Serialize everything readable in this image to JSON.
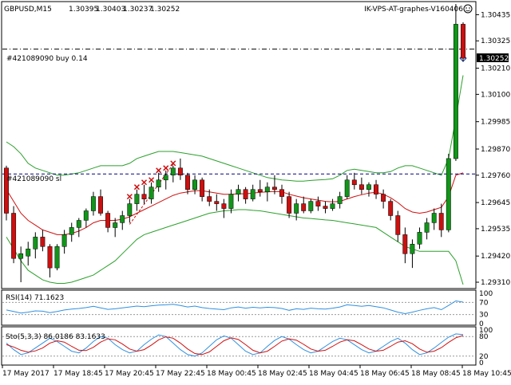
{
  "symbol": "GBPUSD,M15",
  "ohlc": [
    "1.30395",
    "1.30403",
    "1.30237",
    "1.30252"
  ],
  "expert": "IK-VPS-AT-graphes-V160406",
  "expert_icon": "smiley-icon",
  "orders": {
    "buy_label": "#421089090 buy 0.14",
    "sl_label": "#421089090 sl"
  },
  "price_badge": "1.30252",
  "colors": {
    "bull": "#109618",
    "bear": "#cc1010",
    "ma": "#d01010",
    "bands": "#2ca02c",
    "rsi": "#3090e0",
    "stoch_main": "#3090e0",
    "stoch_signal": "#d01010",
    "level": "#000080"
  },
  "main_chart": {
    "price_ticks": [
      "1.30435",
      "1.30325",
      "1.30210",
      "1.30100",
      "1.29985",
      "1.29870",
      "1.29760",
      "1.29645",
      "1.29535",
      "1.29420",
      "1.29310"
    ],
    "ylim": [
      1.2929,
      1.3048
    ],
    "buy_price": 1.3029,
    "sl_price": 1.29765,
    "last_price": 1.30252,
    "candles": [
      [
        1.2979,
        1.298,
        1.2957,
        1.296
      ],
      [
        1.296,
        1.2963,
        1.2939,
        1.2941
      ],
      [
        1.2941,
        1.2946,
        1.2931,
        1.2943
      ],
      [
        1.2942,
        1.2948,
        1.2938,
        1.2945
      ],
      [
        1.2945,
        1.2952,
        1.2941,
        1.295
      ],
      [
        1.295,
        1.2953,
        1.2944,
        1.2946
      ],
      [
        1.2946,
        1.2947,
        1.2933,
        1.2937
      ],
      [
        1.2937,
        1.2947,
        1.2936,
        1.2946
      ],
      [
        1.2946,
        1.2953,
        1.2943,
        1.2951
      ],
      [
        1.2951,
        1.2956,
        1.2948,
        1.2954
      ],
      [
        1.2954,
        1.2958,
        1.295,
        1.2957
      ],
      [
        1.2957,
        1.2962,
        1.2954,
        1.2961
      ],
      [
        1.2961,
        1.2969,
        1.2959,
        1.2967
      ],
      [
        1.2967,
        1.297,
        1.2959,
        1.296
      ],
      [
        1.296,
        1.2961,
        1.2952,
        1.2954
      ],
      [
        1.2954,
        1.2958,
        1.295,
        1.2956
      ],
      [
        1.2956,
        1.2961,
        1.2953,
        1.2959
      ],
      [
        1.2959,
        1.2966,
        1.2956,
        1.2964
      ],
      [
        1.2964,
        1.297,
        1.2961,
        1.2968
      ],
      [
        1.2968,
        1.2972,
        1.2964,
        1.2966
      ],
      [
        1.2966,
        1.2973,
        1.2964,
        1.2971
      ],
      [
        1.2971,
        1.2977,
        1.2969,
        1.2974
      ],
      [
        1.2974,
        1.2978,
        1.297,
        1.2976
      ],
      [
        1.2976,
        1.298,
        1.2973,
        1.2979
      ],
      [
        1.2979,
        1.2983,
        1.2974,
        1.2976
      ],
      [
        1.2976,
        1.2977,
        1.2968,
        1.297
      ],
      [
        1.297,
        1.2976,
        1.2968,
        1.2974
      ],
      [
        1.2974,
        1.2975,
        1.2965,
        1.2967
      ],
      [
        1.2967,
        1.297,
        1.2963,
        1.2965
      ],
      [
        1.2965,
        1.2968,
        1.2961,
        1.2964
      ],
      [
        1.2964,
        1.2966,
        1.2958,
        1.2962
      ],
      [
        1.2962,
        1.297,
        1.296,
        1.2968
      ],
      [
        1.2968,
        1.2972,
        1.2965,
        1.297
      ],
      [
        1.297,
        1.2971,
        1.2964,
        1.2966
      ],
      [
        1.2966,
        1.2972,
        1.2965,
        1.297
      ],
      [
        1.297,
        1.2974,
        1.2967,
        1.2969
      ],
      [
        1.2969,
        1.2973,
        1.2965,
        1.2971
      ],
      [
        1.2971,
        1.2976,
        1.2968,
        1.297
      ],
      [
        1.297,
        1.2972,
        1.2964,
        1.2967
      ],
      [
        1.2967,
        1.2969,
        1.2958,
        1.296
      ],
      [
        1.296,
        1.2966,
        1.2957,
        1.2964
      ],
      [
        1.2964,
        1.2967,
        1.296,
        1.2961
      ],
      [
        1.2961,
        1.2966,
        1.296,
        1.2965
      ],
      [
        1.2965,
        1.2967,
        1.2961,
        1.2963
      ],
      [
        1.2963,
        1.2965,
        1.296,
        1.2962
      ],
      [
        1.2962,
        1.2966,
        1.2961,
        1.2964
      ],
      [
        1.2964,
        1.2969,
        1.2962,
        1.2967
      ],
      [
        1.2967,
        1.2976,
        1.2966,
        1.2974
      ],
      [
        1.2974,
        1.2977,
        1.297,
        1.2972
      ],
      [
        1.2972,
        1.2975,
        1.2968,
        1.297
      ],
      [
        1.297,
        1.2973,
        1.2967,
        1.2972
      ],
      [
        1.2972,
        1.2974,
        1.2966,
        1.2968
      ],
      [
        1.2968,
        1.297,
        1.2962,
        1.2965
      ],
      [
        1.2965,
        1.2966,
        1.2957,
        1.2959
      ],
      [
        1.2959,
        1.2961,
        1.2948,
        1.2951
      ],
      [
        1.2951,
        1.2954,
        1.2939,
        1.2943
      ],
      [
        1.2943,
        1.2949,
        1.2937,
        1.2947
      ],
      [
        1.2947,
        1.2954,
        1.2945,
        1.2952
      ],
      [
        1.2952,
        1.2958,
        1.2949,
        1.2956
      ],
      [
        1.2956,
        1.2962,
        1.2953,
        1.296
      ],
      [
        1.296,
        1.2964,
        1.295,
        1.2953
      ],
      [
        1.2953,
        1.2985,
        1.2952,
        1.2983
      ],
      [
        1.2983,
        1.3048,
        1.2982,
        1.30395
      ],
      [
        1.30395,
        1.30403,
        1.30237,
        1.30252
      ]
    ],
    "ma": [
      1.297,
      1.2965,
      1.296,
      1.2957,
      1.2955,
      1.2953,
      1.2952,
      1.2951,
      1.2951,
      1.29515,
      1.29525,
      1.2954,
      1.2956,
      1.2957,
      1.2957,
      1.2957,
      1.29575,
      1.29585,
      1.296,
      1.29615,
      1.2963,
      1.29645,
      1.2966,
      1.29675,
      1.29685,
      1.2969,
      1.29695,
      1.29695,
      1.2969,
      1.29685,
      1.2968,
      1.2968,
      1.29682,
      1.29682,
      1.29685,
      1.29688,
      1.2969,
      1.29692,
      1.2969,
      1.2968,
      1.29672,
      1.29665,
      1.2966,
      1.29655,
      1.2965,
      1.29648,
      1.2965,
      1.2966,
      1.2967,
      1.29678,
      1.29685,
      1.29688,
      1.2968,
      1.29665,
      1.29645,
      1.2962,
      1.29605,
      1.296,
      1.29605,
      1.29615,
      1.29625,
      1.2967,
      1.2976,
      1.2977
    ],
    "bb_upper": [
      1.299,
      1.2988,
      1.2985,
      1.2981,
      1.2979,
      1.2978,
      1.2977,
      1.2976,
      1.2976,
      1.29765,
      1.2977,
      1.2978,
      1.2979,
      1.298,
      1.298,
      1.298,
      1.298,
      1.2981,
      1.2983,
      1.2984,
      1.2985,
      1.2986,
      1.2986,
      1.2986,
      1.29855,
      1.2985,
      1.29845,
      1.2984,
      1.2983,
      1.2982,
      1.2981,
      1.298,
      1.2979,
      1.2978,
      1.2977,
      1.2976,
      1.2975,
      1.29745,
      1.2974,
      1.29738,
      1.29735,
      1.29735,
      1.29738,
      1.2974,
      1.29742,
      1.29745,
      1.2976,
      1.2978,
      1.29785,
      1.2978,
      1.29775,
      1.2977,
      1.2977,
      1.29775,
      1.2979,
      1.298,
      1.298,
      1.2979,
      1.2978,
      1.2977,
      1.2976,
      1.2983,
      1.3,
      1.3018
    ],
    "bb_lower": [
      1.295,
      1.2945,
      1.294,
      1.2936,
      1.2934,
      1.2932,
      1.2931,
      1.29305,
      1.29305,
      1.2931,
      1.2932,
      1.2933,
      1.2934,
      1.2936,
      1.2938,
      1.294,
      1.2943,
      1.2946,
      1.2949,
      1.2951,
      1.2952,
      1.2953,
      1.2954,
      1.2955,
      1.2956,
      1.2957,
      1.2958,
      1.2959,
      1.296,
      1.29605,
      1.2961,
      1.29612,
      1.29615,
      1.29615,
      1.29612,
      1.2961,
      1.29605,
      1.296,
      1.29595,
      1.2959,
      1.29585,
      1.2958,
      1.29578,
      1.29575,
      1.29572,
      1.2957,
      1.29565,
      1.2956,
      1.29555,
      1.2955,
      1.29545,
      1.2954,
      1.2952,
      1.295,
      1.2948,
      1.2946,
      1.2945,
      1.2944,
      1.2944,
      1.2944,
      1.2944,
      1.2944,
      1.294,
      1.293
    ],
    "marks": [
      17,
      18,
      19,
      20,
      21,
      22,
      23
    ]
  },
  "rsi": {
    "label": "RSI(14) 71.1623",
    "scale": [
      "100",
      "70",
      "30",
      "0"
    ],
    "levels": [
      70,
      30
    ],
    "values": [
      45,
      40,
      35,
      38,
      42,
      41,
      36,
      40,
      45,
      48,
      50,
      53,
      57,
      52,
      47,
      49,
      52,
      55,
      58,
      56,
      59,
      61,
      62,
      64,
      60,
      55,
      58,
      53,
      50,
      48,
      46,
      52,
      55,
      51,
      54,
      52,
      54,
      53,
      50,
      44,
      49,
      47,
      51,
      49,
      48,
      51,
      55,
      62,
      60,
      57,
      60,
      56,
      52,
      45,
      38,
      33,
      38,
      44,
      49,
      53,
      46,
      60,
      75,
      71.1623
    ]
  },
  "stoch": {
    "label": "Sto(5,3,3) 86.0186 83.1633",
    "scale": [
      "100",
      "80",
      "20",
      "0"
    ],
    "levels": [
      80,
      20
    ],
    "main": [
      60,
      40,
      25,
      30,
      45,
      60,
      75,
      65,
      50,
      35,
      30,
      45,
      65,
      80,
      75,
      55,
      40,
      30,
      35,
      55,
      72,
      85,
      80,
      60,
      40,
      25,
      20,
      30,
      50,
      70,
      82,
      75,
      55,
      35,
      25,
      30,
      50,
      68,
      80,
      72,
      55,
      40,
      30,
      35,
      50,
      65,
      75,
      70,
      55,
      40,
      30,
      35,
      50,
      65,
      75,
      60,
      40,
      25,
      30,
      45,
      62,
      78,
      88,
      86.0186
    ],
    "signal": [
      55,
      48,
      38,
      32,
      36,
      45,
      60,
      67,
      63,
      50,
      38,
      37,
      47,
      63,
      73,
      70,
      57,
      42,
      35,
      40,
      54,
      70,
      79,
      75,
      60,
      42,
      28,
      25,
      33,
      50,
      67,
      76,
      71,
      55,
      38,
      30,
      35,
      50,
      66,
      73,
      69,
      56,
      42,
      35,
      38,
      50,
      63,
      70,
      67,
      55,
      42,
      35,
      38,
      50,
      63,
      67,
      58,
      42,
      32,
      35,
      46,
      62,
      76,
      83.1633
    ]
  },
  "time_axis": [
    "17 May 2017",
    "17 May 18:45",
    "17 May 20:45",
    "17 May 22:45",
    "18 May 00:45",
    "18 May 02:45",
    "18 May 04:45",
    "18 May 06:45",
    "18 May 08:45",
    "18 May 10:45"
  ]
}
